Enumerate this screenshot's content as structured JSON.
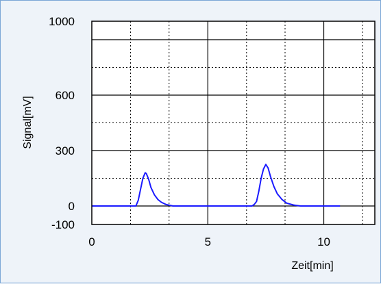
{
  "chart_data": {
    "type": "line",
    "title": "",
    "xlabel": "Zeit[min]",
    "ylabel": "Signal[mV]",
    "xlim": [
      0,
      12.2
    ],
    "ylim": [
      -100,
      1000
    ],
    "xticks": [
      0,
      5,
      10
    ],
    "xtick_labels": [
      "0",
      "5",
      "10"
    ],
    "yticks": [
      -100,
      0,
      300,
      600,
      1000
    ],
    "ytick_labels": [
      "-100",
      "0",
      "300",
      "600",
      "1000"
    ],
    "grid": {
      "solid_x": [
        5,
        10
      ],
      "dotted_x": [
        1.67,
        3.33,
        6.67,
        8.33,
        11.67
      ],
      "solid_y": [
        0,
        300,
        600,
        900
      ],
      "dotted_y": [
        150,
        450,
        750
      ]
    },
    "series": [
      {
        "color": "#1a1aff",
        "x": [
          0,
          1.9,
          2.0,
          2.1,
          2.2,
          2.3,
          2.35,
          2.45,
          2.55,
          2.7,
          2.85,
          3.0,
          3.2,
          3.5,
          4.0,
          5.0,
          6.0,
          6.9,
          7.0,
          7.1,
          7.2,
          7.3,
          7.4,
          7.5,
          7.6,
          7.7,
          7.85,
          8.0,
          8.2,
          8.4,
          8.7,
          9.0,
          10.0,
          10.7
        ],
        "y": [
          0,
          0,
          30,
          90,
          150,
          180,
          175,
          145,
          100,
          60,
          35,
          20,
          8,
          0,
          0,
          0,
          0,
          0,
          8,
          25,
          80,
          150,
          200,
          225,
          205,
          160,
          105,
          65,
          35,
          15,
          5,
          0,
          0,
          0
        ]
      }
    ]
  }
}
